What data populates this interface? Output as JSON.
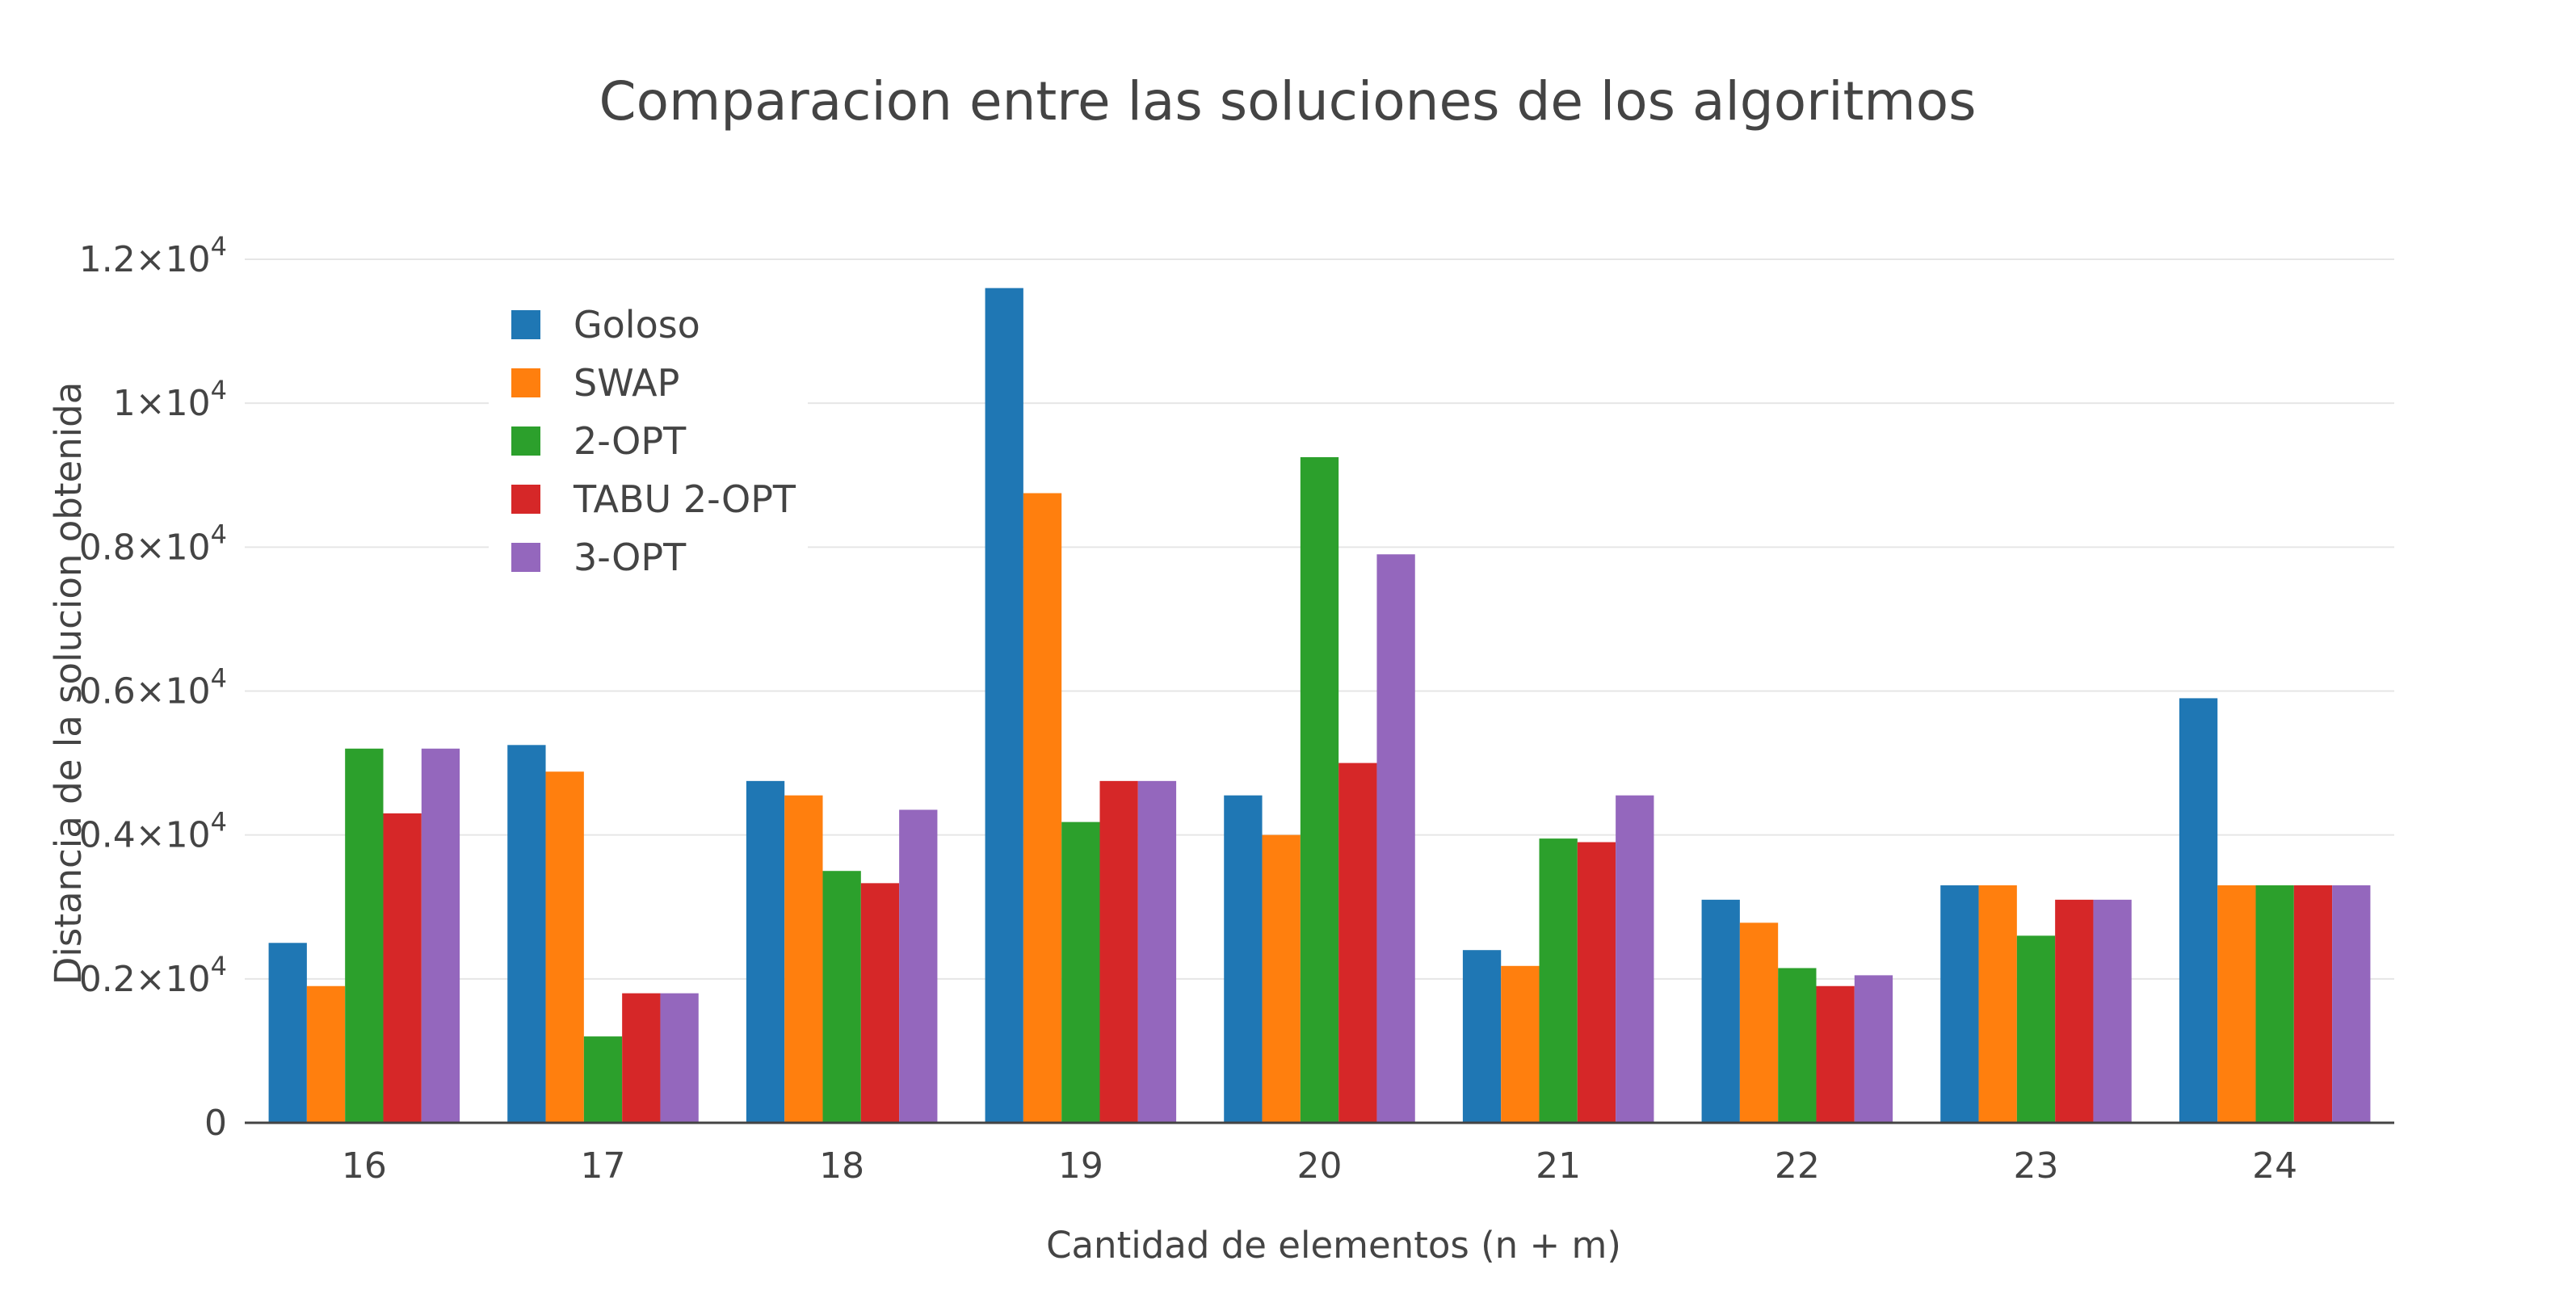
{
  "chart_data": {
    "type": "bar",
    "title": "Comparacion entre las soluciones de los algoritmos",
    "xlabel": "Cantidad de elementos (n + m)",
    "ylabel": "Distancia de la solucion obtenida",
    "categories": [
      "16",
      "17",
      "18",
      "19",
      "20",
      "21",
      "22",
      "23",
      "24"
    ],
    "ylim": [
      0,
      12000
    ],
    "yticks": [
      {
        "value": 0,
        "base": "0",
        "exp": ""
      },
      {
        "value": 2000,
        "base": "0.2×10",
        "exp": "4"
      },
      {
        "value": 4000,
        "base": "0.4×10",
        "exp": "4"
      },
      {
        "value": 6000,
        "base": "0.6×10",
        "exp": "4"
      },
      {
        "value": 8000,
        "base": "0.8×10",
        "exp": "4"
      },
      {
        "value": 10000,
        "base": "1×10",
        "exp": "4"
      },
      {
        "value": 12000,
        "base": "1.2×10",
        "exp": "4"
      }
    ],
    "grid": true,
    "legend_position": "top-left",
    "series": [
      {
        "name": "Goloso",
        "color": "#1f77b4",
        "values": [
          2500,
          5250,
          4750,
          11600,
          4550,
          2400,
          3100,
          3300,
          5900
        ]
      },
      {
        "name": "SWAP",
        "color": "#ff7f0e",
        "values": [
          1900,
          4880,
          4550,
          8750,
          4000,
          2180,
          2780,
          3300,
          3300
        ]
      },
      {
        "name": "2-OPT",
        "color": "#2ca02c",
        "values": [
          5200,
          1200,
          3500,
          4180,
          9250,
          3950,
          2150,
          2600,
          3300
        ]
      },
      {
        "name": "TABU 2-OPT",
        "color": "#d62728",
        "values": [
          4300,
          1800,
          3330,
          4750,
          5000,
          3900,
          1900,
          3100,
          3300
        ]
      },
      {
        "name": "3-OPT",
        "color": "#9467bd",
        "values": [
          5200,
          1800,
          4350,
          4750,
          7900,
          4550,
          2050,
          3100,
          3300
        ]
      }
    ]
  }
}
